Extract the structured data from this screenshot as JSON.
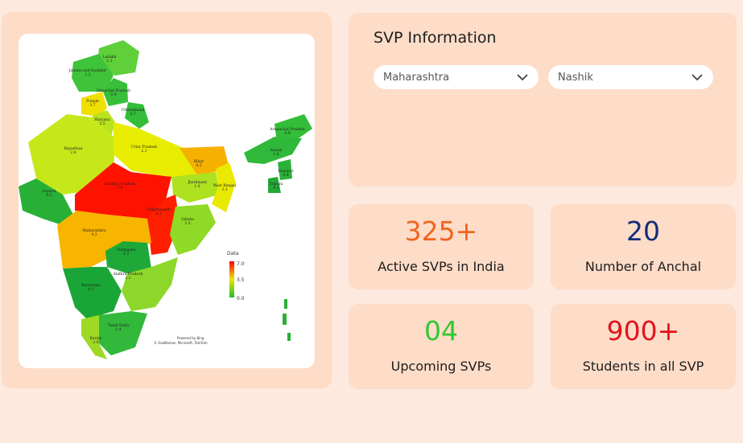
{
  "map": {
    "legend_title": "Data",
    "legend_max": "7.0",
    "legend_mid": "3.5",
    "legend_min": "0.0",
    "credit_line1": "Powered by Bing",
    "credit_line2": "© GeoNames, Microsoft, TomTom",
    "regions": [
      {
        "name": "Ladakh",
        "value": "1.1"
      },
      {
        "name": "Jammu and Kashmir",
        "value": "1.2"
      },
      {
        "name": "Himachal Pradesh",
        "value": "0.9"
      },
      {
        "name": "Punjab",
        "value": "3.7"
      },
      {
        "name": "Uttarakhand",
        "value": "0.7"
      },
      {
        "name": "Haryana",
        "value": "2.5"
      },
      {
        "name": "Rajasthan",
        "value": "2.8"
      },
      {
        "name": "Uttar Pradesh",
        "value": "2.1"
      },
      {
        "name": "Bihar",
        "value": "4.5"
      },
      {
        "name": "Arunachal Pradesh",
        "value": "0.9"
      },
      {
        "name": "Assam",
        "value": "1.6"
      },
      {
        "name": "Manipur",
        "value": "0.4"
      },
      {
        "name": "Tripura",
        "value": "0.3"
      },
      {
        "name": "Gujarat",
        "value": "0.3"
      },
      {
        "name": "Madhya Pradesh",
        "value": "7.0"
      },
      {
        "name": "Jharkhand",
        "value": "1.9"
      },
      {
        "name": "West Bengal",
        "value": "3.3"
      },
      {
        "name": "Chhattisgarh",
        "value": "6.1"
      },
      {
        "name": "Odisha",
        "value": "2.5"
      },
      {
        "name": "Maharashtra",
        "value": "4.3"
      },
      {
        "name": "Telangana",
        "value": "0.2"
      },
      {
        "name": "Andhra Pradesh",
        "value": "2.1"
      },
      {
        "name": "Karnataka",
        "value": "0.1"
      },
      {
        "name": "Tamil Nadu",
        "value": "1.4"
      },
      {
        "name": "Kerala",
        "value": "2.6"
      }
    ]
  },
  "info": {
    "title": "SVP Information",
    "state_select": "Maharashtra",
    "district_select": "Nashik"
  },
  "stats": [
    {
      "value": "325+",
      "label": "Active SVPs in India",
      "color": "#f06521"
    },
    {
      "value": "20",
      "label": "Number of Anchal",
      "color": "#142c7a"
    },
    {
      "value": "04",
      "label": "Upcoming SVPs",
      "color": "#2fc92f"
    },
    {
      "value": "900+",
      "label": "Students in all SVP",
      "color": "#e3131b"
    }
  ]
}
